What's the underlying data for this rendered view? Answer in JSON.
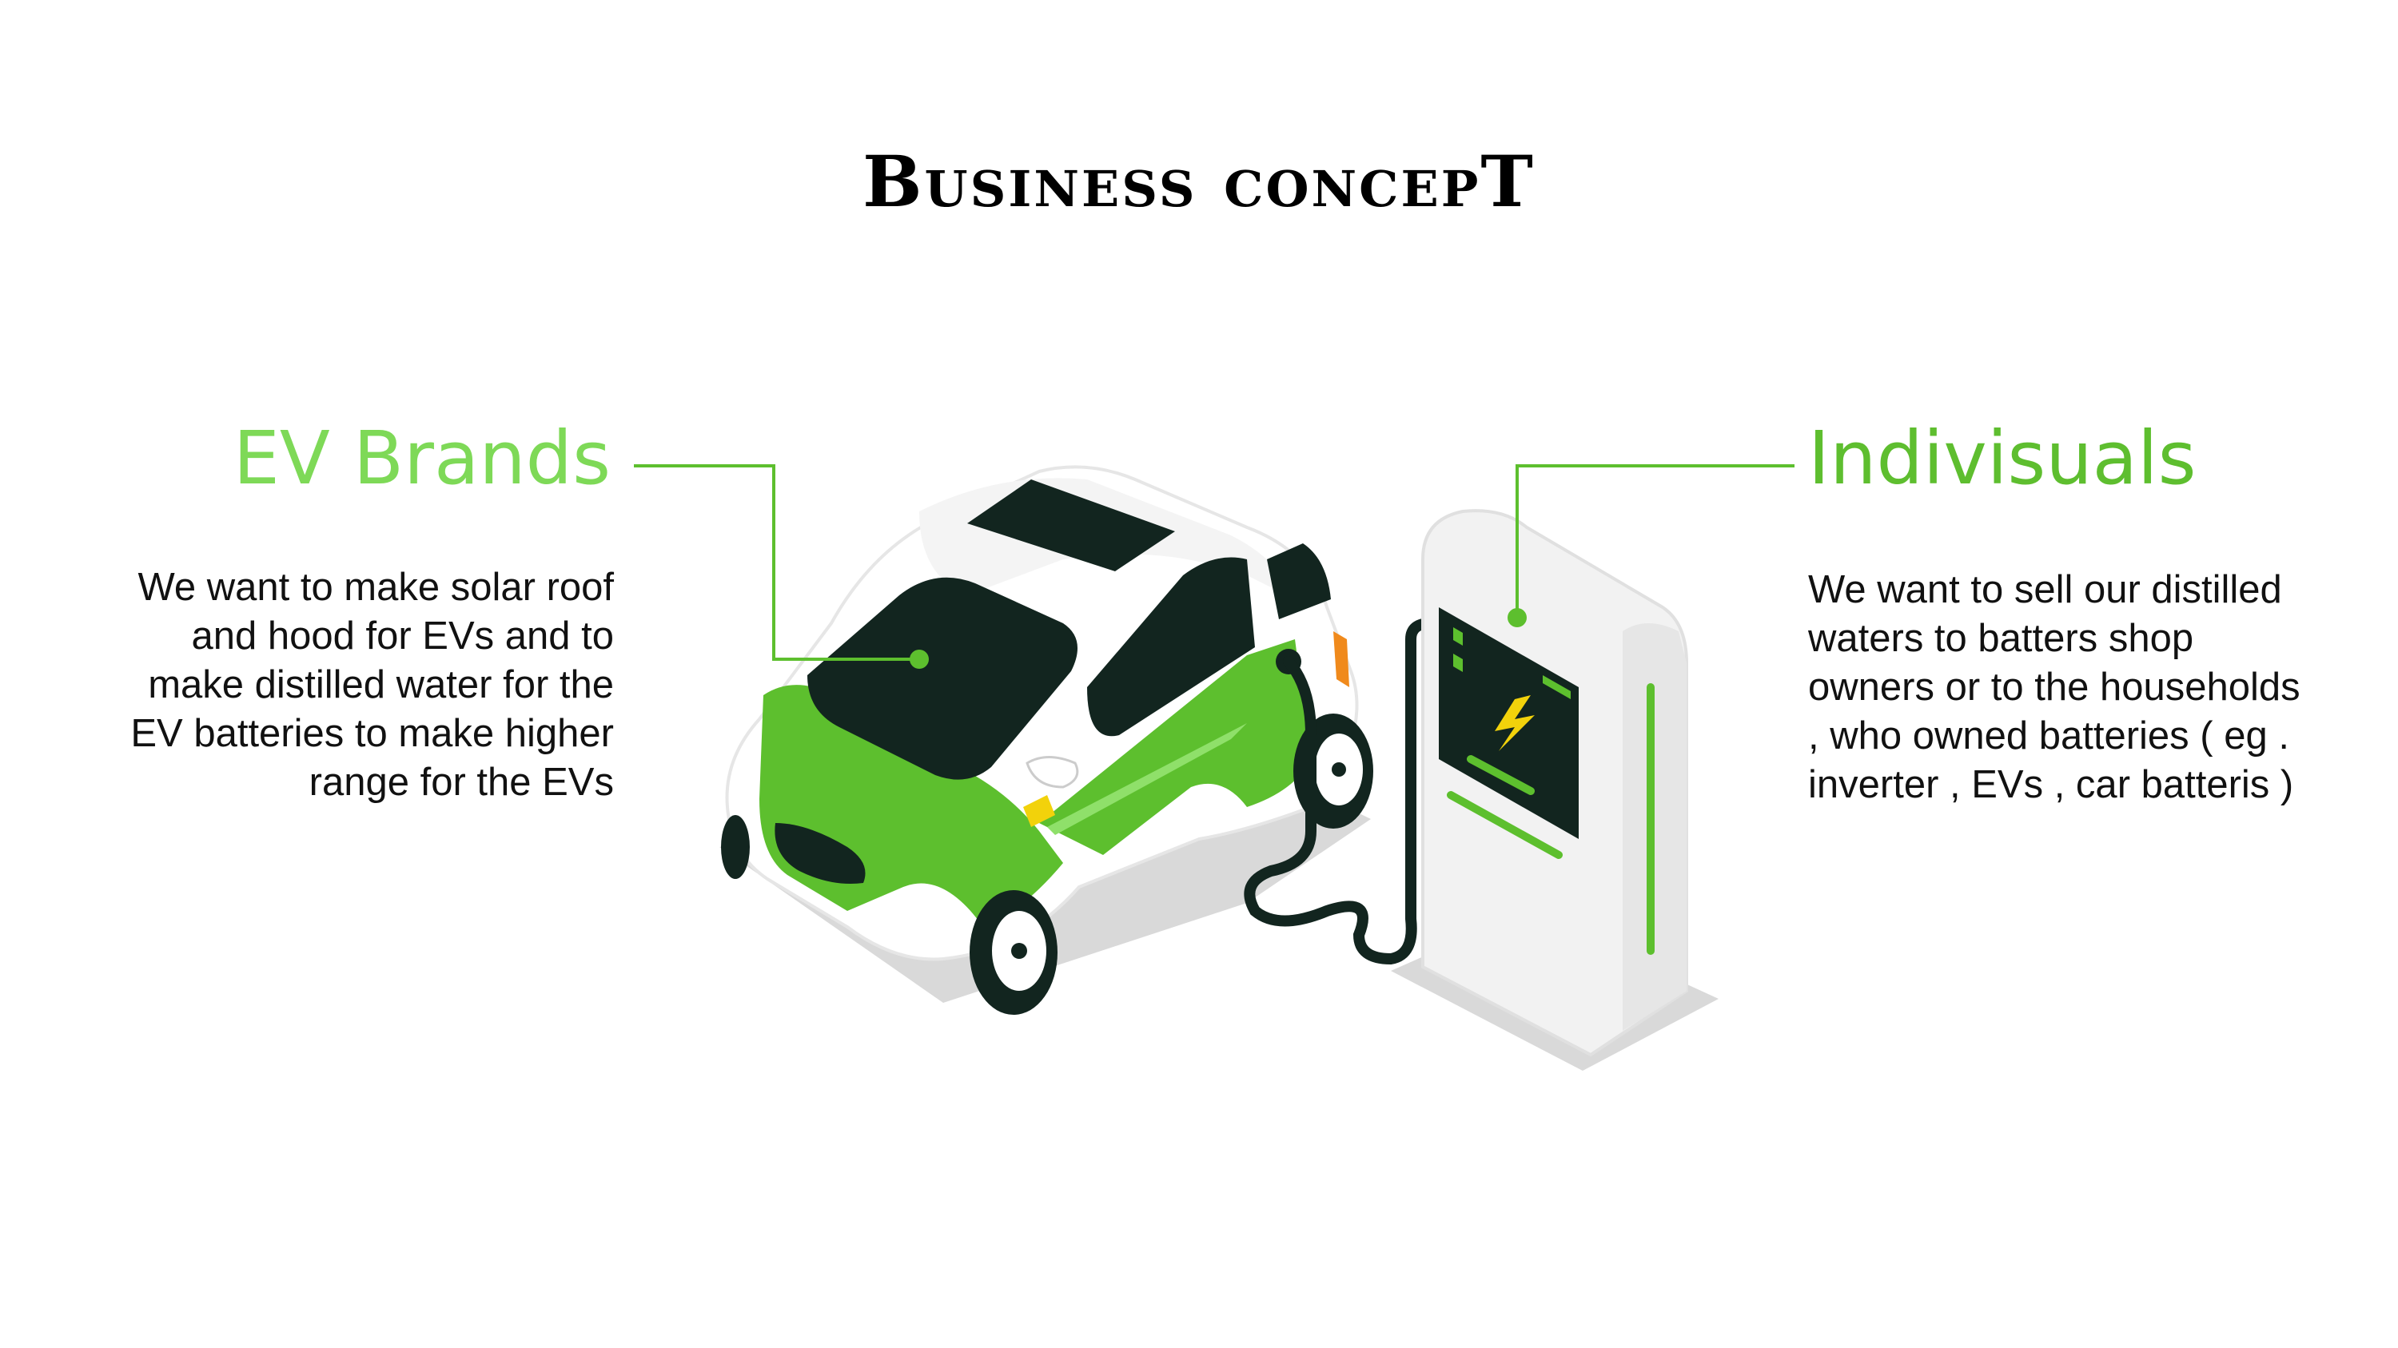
{
  "slide": {
    "title": "Business concepT",
    "left": {
      "heading": "EV Brands",
      "body": "We want to make solar roof and hood for EVs and to make distilled water for the EV batteries to make higher range for the EVs"
    },
    "right": {
      "heading": "Indivisuals",
      "body": "We want to sell our distilled waters to batters shop owners or to the households , who owned batteries ( eg . inverter , EVs , car batteris )"
    }
  },
  "colors": {
    "light_green": "#7ED957",
    "green": "#5EBE2F",
    "car_green": "#5DBF2E",
    "dark": "#12251F",
    "white": "#FFFFFF",
    "shadow": "#D9D9D9",
    "accent_orange": "#F08A1C",
    "bolt": "#F2D20B"
  },
  "icons": {
    "car": "electric-car-icon",
    "charger": "charging-station-icon",
    "bolt": "lightning-bolt-icon"
  }
}
